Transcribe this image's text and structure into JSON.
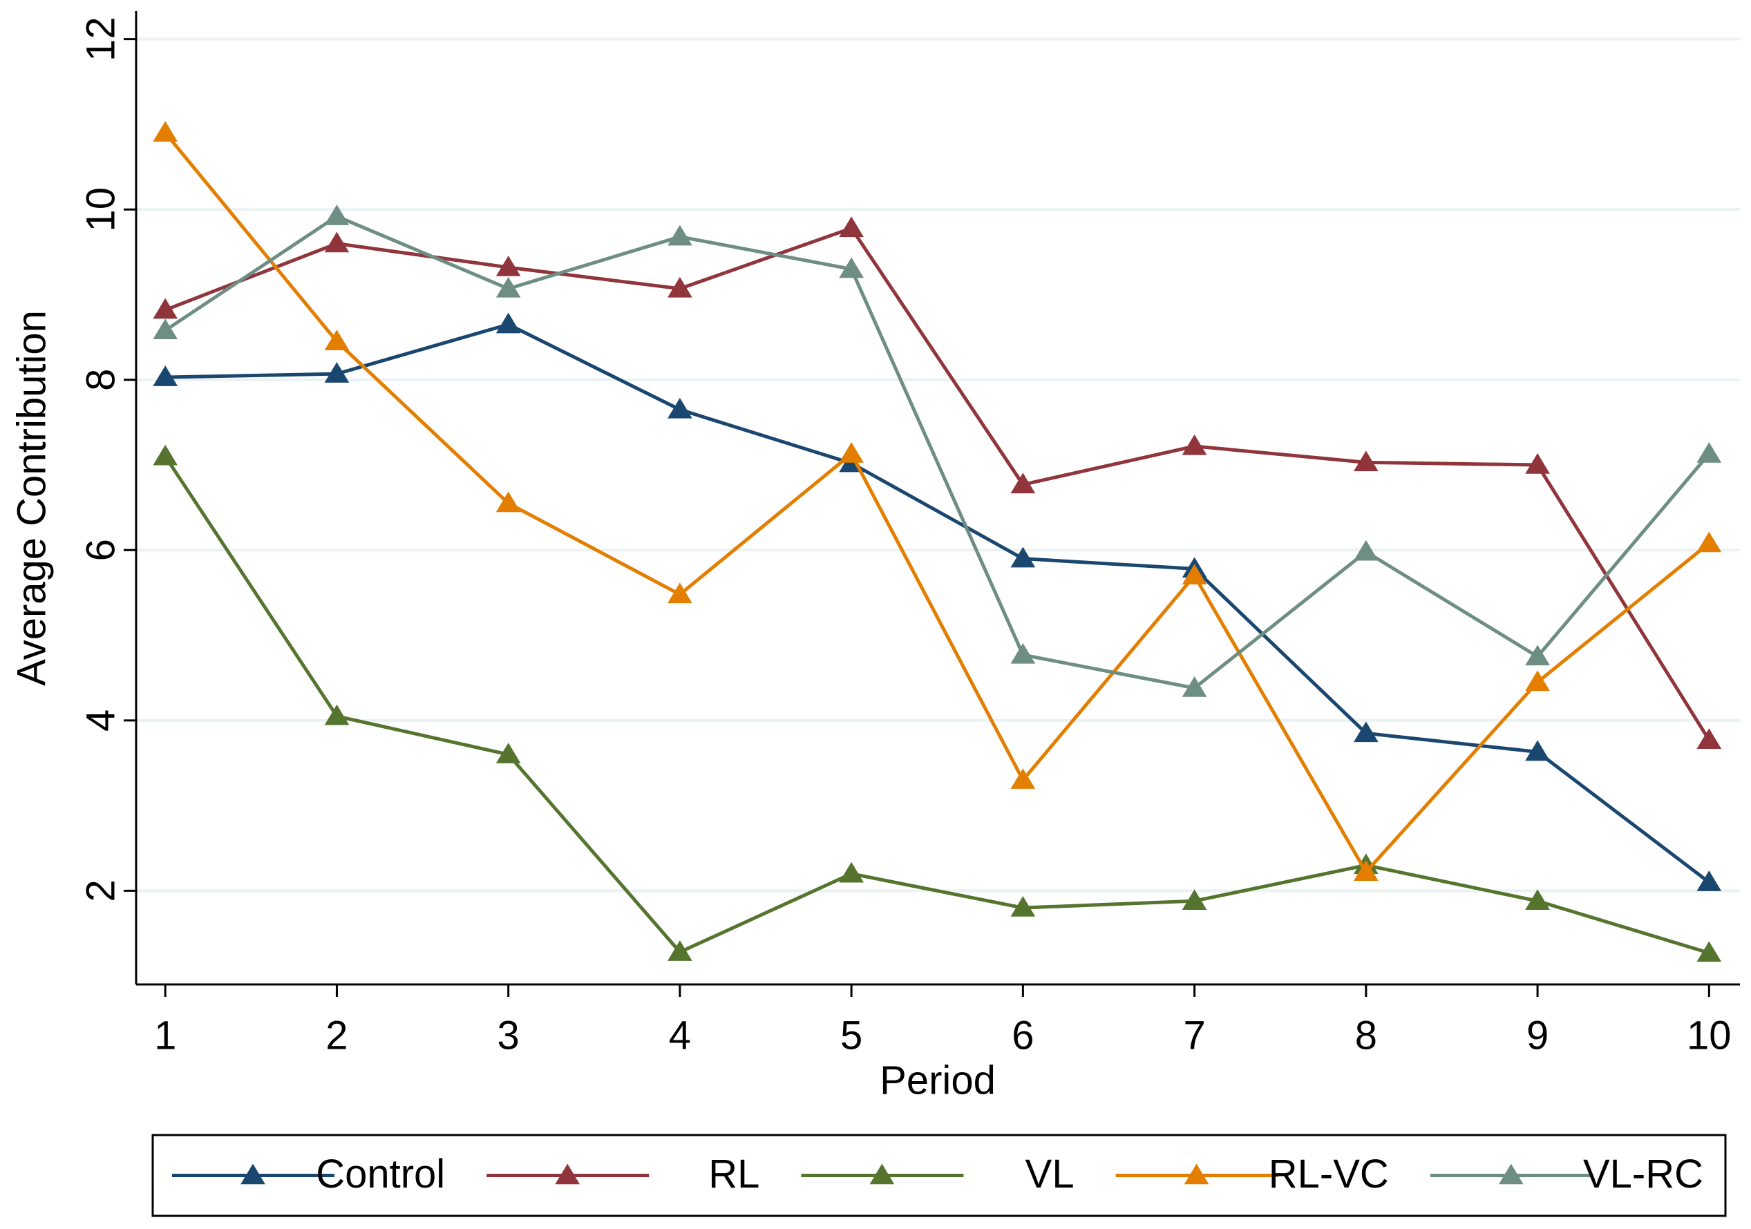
{
  "chart_data": {
    "type": "line",
    "x": [
      1,
      2,
      3,
      4,
      5,
      6,
      7,
      8,
      9,
      10
    ],
    "xlabel": "Period",
    "ylabel": "Average Contribution",
    "xlim": [
      0.83,
      10.18
    ],
    "xticks": [
      1,
      2,
      3,
      4,
      5,
      6,
      7,
      8,
      9,
      10
    ],
    "ylim": [
      0.9,
      12.33
    ],
    "yticks": [
      2,
      4,
      6,
      8,
      10,
      12
    ],
    "grid": true,
    "legend": "bottom",
    "marker": "triangle",
    "series": [
      {
        "name": "Control",
        "color": "#1a476f",
        "values": [
          8.03,
          8.07,
          8.65,
          7.65,
          7.02,
          5.9,
          5.78,
          3.85,
          3.63,
          2.1
        ]
      },
      {
        "name": "RL",
        "color": "#90353b",
        "values": [
          8.82,
          9.6,
          9.32,
          9.07,
          9.78,
          6.77,
          7.22,
          7.03,
          7.0,
          3.77
        ]
      },
      {
        "name": "VL",
        "color": "#55752f",
        "values": [
          7.1,
          4.05,
          3.6,
          1.28,
          2.2,
          1.8,
          1.88,
          2.3,
          1.88,
          1.27
        ]
      },
      {
        "name": "RL-VC",
        "color": "#e37e00",
        "values": [
          10.9,
          8.45,
          6.55,
          5.48,
          7.13,
          3.3,
          5.7,
          2.22,
          4.45,
          6.08
        ]
      },
      {
        "name": "VL-RC",
        "color": "#6e8e84",
        "values": [
          8.58,
          9.92,
          9.07,
          9.68,
          9.3,
          4.77,
          4.38,
          5.98,
          4.75,
          7.13
        ]
      }
    ]
  }
}
